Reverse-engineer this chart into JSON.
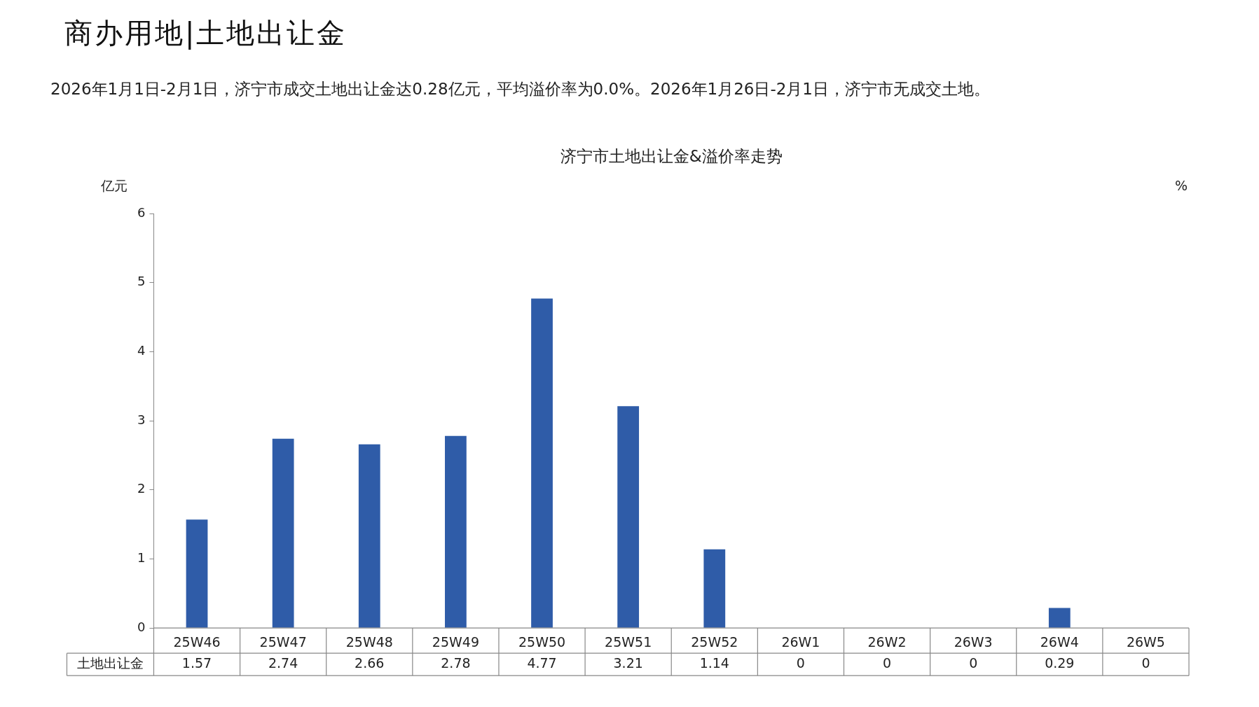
{
  "chart_data": {
    "type": "bar",
    "title": "商办用地|土地出让金",
    "subtitle": "2026年1月1日-2月1日，济宁市成交土地出让金达0.28亿元，平均溢价率为0.0%。2026年1月26日-2月1日，济宁市无成交土地。",
    "annotations": [
      "济宁市土地出让金&溢价率走势"
    ],
    "ylabel": "亿元",
    "y2label": "%",
    "categories": [
      "25W46",
      "25W47",
      "25W48",
      "25W49",
      "25W50",
      "25W51",
      "25W52",
      "26W1",
      "26W2",
      "26W3",
      "26W4",
      "26W5"
    ],
    "series": [
      {
        "name": "土地出让金",
        "color": "#2f5ca8",
        "values": [
          1.57,
          2.74,
          2.66,
          2.78,
          4.77,
          3.21,
          1.14,
          0,
          0,
          0,
          0.29,
          0
        ]
      }
    ],
    "ylim": [
      0,
      6
    ],
    "yticks": [
      0,
      1,
      2,
      3,
      4,
      5,
      6
    ],
    "data_labels": true
  }
}
